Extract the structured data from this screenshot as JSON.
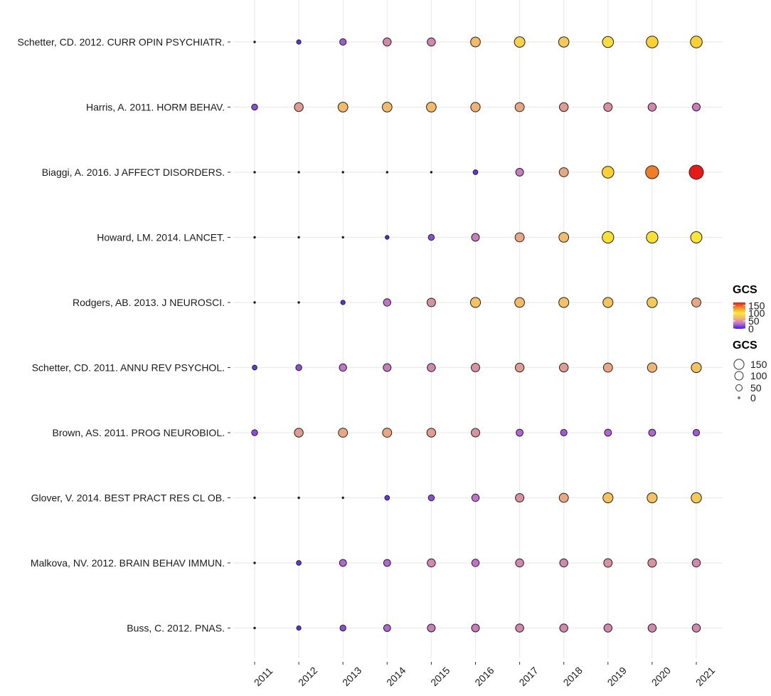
{
  "chart_data": {
    "type": "scatter",
    "x": [
      "2011",
      "2012",
      "2013",
      "2014",
      "2015",
      "2016",
      "2017",
      "2018",
      "2019",
      "2020",
      "2021"
    ],
    "size_range": [
      0,
      170
    ],
    "rows": [
      {
        "label": "Schetter, CD. 2012. CURR OPIN PSYCHIATR.",
        "values": [
          0,
          8,
          25,
          45,
          45,
          70,
          85,
          80,
          95,
          110,
          110
        ]
      },
      {
        "label": "Harris, A. 2011. HORM BEHAV.",
        "values": [
          20,
          55,
          70,
          70,
          70,
          65,
          60,
          55,
          50,
          45,
          40
        ]
      },
      {
        "label": "Biaggi, A. 2016. J AFFECT DISORDERS.",
        "values": [
          0,
          0,
          0,
          0,
          0,
          10,
          40,
          60,
          110,
          140,
          170
        ]
      },
      {
        "label": "Howard, LM. 2014. LANCET.",
        "values": [
          0,
          0,
          0,
          5,
          20,
          40,
          60,
          70,
          105,
          105,
          100
        ]
      },
      {
        "label": "Rodgers, AB. 2013. J NEUROSCI.",
        "values": [
          0,
          0,
          8,
          35,
          50,
          75,
          70,
          75,
          75,
          80,
          60
        ]
      },
      {
        "label": "Schetter, CD. 2011. ANNU REV PSYCHOL.",
        "values": [
          10,
          20,
          35,
          40,
          45,
          50,
          55,
          55,
          60,
          65,
          75
        ]
      },
      {
        "label": "Brown, AS. 2011. PROG NEUROBIOL.",
        "values": [
          20,
          55,
          60,
          60,
          55,
          50,
          30,
          25,
          30,
          30,
          25
        ]
      },
      {
        "label": "Glover, V. 2014. BEST PRACT RES CL OB.",
        "values": [
          0,
          0,
          0,
          10,
          20,
          35,
          50,
          60,
          75,
          75,
          80
        ]
      },
      {
        "label": "Malkova, NV. 2012. BRAIN BEHAV IMMUN.",
        "values": [
          0,
          10,
          30,
          30,
          45,
          35,
          45,
          45,
          50,
          50,
          45
        ]
      },
      {
        "label": "Buss, C. 2012. PNAS.",
        "values": [
          0,
          8,
          20,
          30,
          40,
          40,
          45,
          45,
          45,
          45,
          45
        ]
      }
    ],
    "legend_color": {
      "title": "GCS",
      "ticks": [
        "150",
        "100",
        "50",
        "0"
      ],
      "tick_values": [
        150,
        100,
        50,
        0
      ],
      "range": [
        0,
        170
      ],
      "colors": [
        "#3a1ee6",
        "#c36fd0",
        "#f2b86a",
        "#fbe735",
        "#f28a2a",
        "#e81a18"
      ]
    },
    "legend_size": {
      "title": "GCS",
      "labels": [
        "150",
        "100",
        "50",
        "0"
      ],
      "values": [
        150,
        100,
        50,
        0
      ]
    },
    "grid": true,
    "legend_position": "right"
  }
}
